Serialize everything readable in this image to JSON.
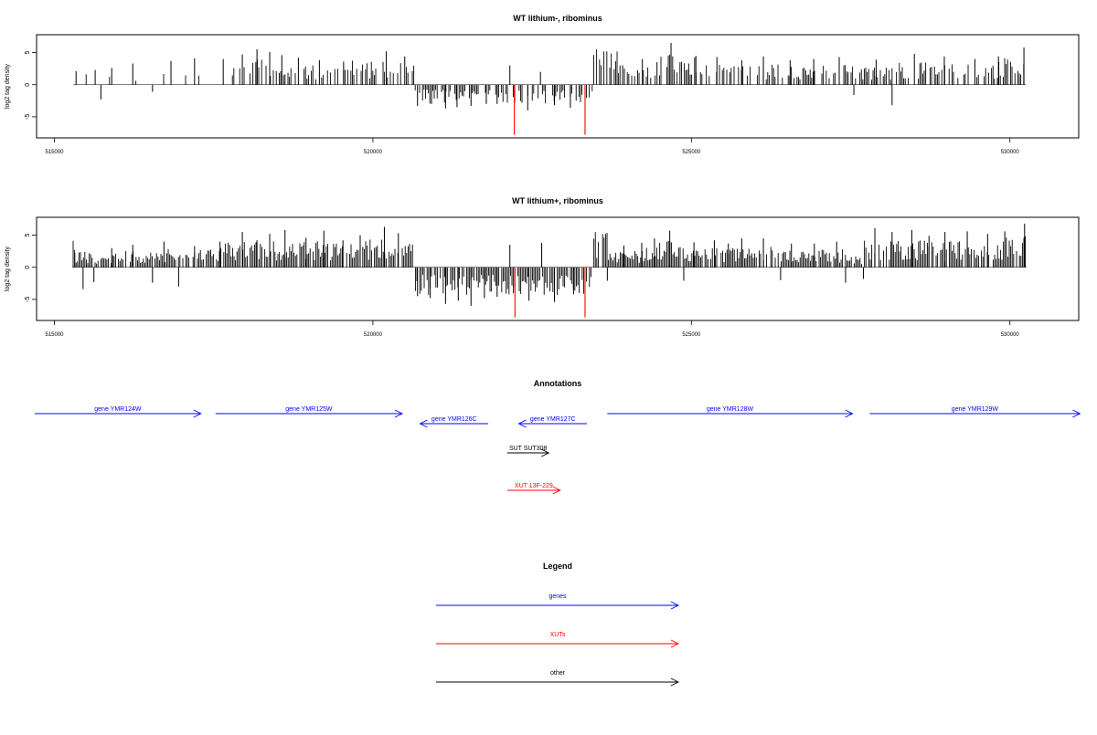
{
  "colors": {
    "genes": "#0000ff",
    "xuts": "#ff0000",
    "other": "#000000",
    "bars": "#000000",
    "neg_peaks": "#ff0000"
  },
  "chart_data": [
    {
      "type": "bar",
      "title": "WT lithium-, ribominus",
      "ylabel": "log2 tag density",
      "xlim": [
        515000,
        530300
      ],
      "ylim": [
        -8,
        7.5
      ],
      "x_ticks": [
        515000,
        520000,
        525000,
        530000
      ],
      "x_tick_labels": [
        "515000",
        "520000",
        "525000",
        "530000"
      ],
      "y_ticks": [
        -5,
        0,
        5
      ],
      "y_tick_labels": [
        "-5",
        "0",
        "5"
      ],
      "series": [
        {
          "values": [
            [
              515340,
              2.1
            ],
            [
              515640,
              2.3
            ],
            [
              515730,
              -2.3
            ],
            [
              515900,
              2.6
            ],
            [
              516230,
              3.3
            ],
            [
              516540,
              -1.1
            ],
            [
              516830,
              3.7
            ],
            [
              517200,
              4.1
            ],
            [
              517650,
              4.0
            ],
            [
              517950,
              4.7
            ],
            [
              518180,
              5.5
            ],
            [
              518380,
              5.1
            ],
            [
              518570,
              4.6
            ],
            [
              518830,
              4.2
            ],
            [
              519160,
              3.8
            ],
            [
              519540,
              3.6
            ],
            [
              520210,
              5.2
            ],
            [
              520500,
              4.4
            ],
            [
              520700,
              -3.3
            ],
            [
              520920,
              -3.0
            ],
            [
              521140,
              -3.7
            ],
            [
              521320,
              -3.5
            ],
            [
              521540,
              -3.3
            ],
            [
              521780,
              -3.0
            ],
            [
              521950,
              -3.0
            ],
            [
              522150,
              3.0
            ],
            [
              522220,
              -7.8
            ],
            [
              522430,
              -4.0
            ],
            [
              522630,
              2.0
            ],
            [
              522850,
              -3.2
            ],
            [
              523100,
              -3.6
            ],
            [
              523330,
              -7.8
            ],
            [
              523920,
              3.0
            ],
            [
              524230,
              4.0
            ],
            [
              524460,
              3.5
            ],
            [
              524680,
              6.5
            ],
            [
              525070,
              4.5
            ],
            [
              525400,
              4.3
            ],
            [
              525790,
              3.8
            ],
            [
              526130,
              4.4
            ],
            [
              526550,
              3.8
            ],
            [
              526920,
              4.0
            ],
            [
              527320,
              4.3
            ],
            [
              527550,
              -1.6
            ],
            [
              527900,
              3.9
            ],
            [
              528150,
              -3.2
            ],
            [
              528500,
              4.8
            ],
            [
              528970,
              4.4
            ],
            [
              529450,
              4.0
            ],
            [
              529820,
              4.4
            ],
            [
              530220,
              5.8
            ]
          ]
        }
      ]
    },
    {
      "type": "bar",
      "title": "WT lithium+, ribominus",
      "ylabel": "log2 tag density",
      "xlim": [
        515000,
        530300
      ],
      "ylim": [
        -8,
        7.5
      ],
      "x_ticks": [
        515000,
        520000,
        525000,
        530000
      ],
      "x_tick_labels": [
        "515000",
        "520000",
        "525000",
        "530000"
      ],
      "y_ticks": [
        -5,
        0,
        5
      ],
      "y_tick_labels": [
        "-5",
        "0",
        "5"
      ],
      "series": [
        {
          "values": [
            [
              515320,
              2.2
            ],
            [
              515450,
              -3.4
            ],
            [
              515620,
              -2.3
            ],
            [
              515900,
              3.0
            ],
            [
              516230,
              3.5
            ],
            [
              516540,
              -2.4
            ],
            [
              516720,
              4.0
            ],
            [
              516950,
              -3.0
            ],
            [
              517200,
              3.3
            ],
            [
              517600,
              4.0
            ],
            [
              517950,
              5.5
            ],
            [
              518180,
              4.2
            ],
            [
              518380,
              5.2
            ],
            [
              518620,
              5.8
            ],
            [
              518950,
              4.6
            ],
            [
              519230,
              5.7
            ],
            [
              519530,
              4.2
            ],
            [
              519800,
              5.0
            ],
            [
              520180,
              6.3
            ],
            [
              520400,
              5.3
            ],
            [
              520700,
              -4.5
            ],
            [
              520900,
              -4.8
            ],
            [
              521140,
              -5.7
            ],
            [
              521340,
              -5.2
            ],
            [
              521540,
              -6.0
            ],
            [
              521750,
              -4.8
            ],
            [
              521950,
              -4.6
            ],
            [
              522150,
              3.5
            ],
            [
              522230,
              -7.8
            ],
            [
              522450,
              -5.2
            ],
            [
              522650,
              3.8
            ],
            [
              522850,
              -5.4
            ],
            [
              523150,
              -4.2
            ],
            [
              523330,
              -7.8
            ],
            [
              523680,
              -2.1
            ],
            [
              523940,
              3.4
            ],
            [
              524220,
              3.8
            ],
            [
              524420,
              4.5
            ],
            [
              524660,
              5.7
            ],
            [
              524880,
              -2.1
            ],
            [
              525040,
              3.9
            ],
            [
              525360,
              4.2
            ],
            [
              525580,
              3.7
            ],
            [
              525790,
              4.5
            ],
            [
              526130,
              4.5
            ],
            [
              526400,
              -2.0
            ],
            [
              526570,
              3.7
            ],
            [
              526930,
              3.7
            ],
            [
              527280,
              4.0
            ],
            [
              527420,
              -2.4
            ],
            [
              527700,
              -1.8
            ],
            [
              527880,
              6.1
            ],
            [
              528150,
              5.5
            ],
            [
              528460,
              5.8
            ],
            [
              528730,
              4.9
            ],
            [
              528980,
              5.5
            ],
            [
              529330,
              5.6
            ],
            [
              529650,
              5.2
            ],
            [
              529920,
              5.6
            ],
            [
              530230,
              6.8
            ]
          ]
        }
      ]
    }
  ],
  "annotations": {
    "title": "Annotations",
    "features": [
      {
        "label": "gene YMR124W",
        "start": 514600,
        "end": 517300,
        "strand": "+",
        "kind": "genes",
        "row": 0
      },
      {
        "label": "gene YMR125W",
        "start": 517530,
        "end": 520460,
        "strand": "+",
        "kind": "genes",
        "row": 0
      },
      {
        "label": "gene YMR126C",
        "start": 520740,
        "end": 521810,
        "strand": "-",
        "kind": "genes",
        "row": 1
      },
      {
        "label": "gene YMR127C",
        "start": 522290,
        "end": 523360,
        "strand": "-",
        "kind": "genes",
        "row": 1
      },
      {
        "label": "gene YMR128W",
        "start": 523680,
        "end": 527530,
        "strand": "+",
        "kind": "genes",
        "row": 0
      },
      {
        "label": "gene YMR129W",
        "start": 527800,
        "end": 531100,
        "strand": "+",
        "kind": "genes",
        "row": 0
      },
      {
        "label": "SUT SUT308",
        "start": 522110,
        "end": 522760,
        "strand": "+",
        "kind": "other",
        "row": 2
      },
      {
        "label": "XUT 13F-229",
        "start": 522110,
        "end": 522940,
        "strand": "+",
        "kind": "xuts",
        "row": 3
      }
    ]
  },
  "legend": {
    "title": "Legend",
    "items": [
      {
        "label": "genes",
        "kind": "genes"
      },
      {
        "label": "XUTs",
        "kind": "xuts"
      },
      {
        "label": "other",
        "kind": "other"
      }
    ]
  }
}
